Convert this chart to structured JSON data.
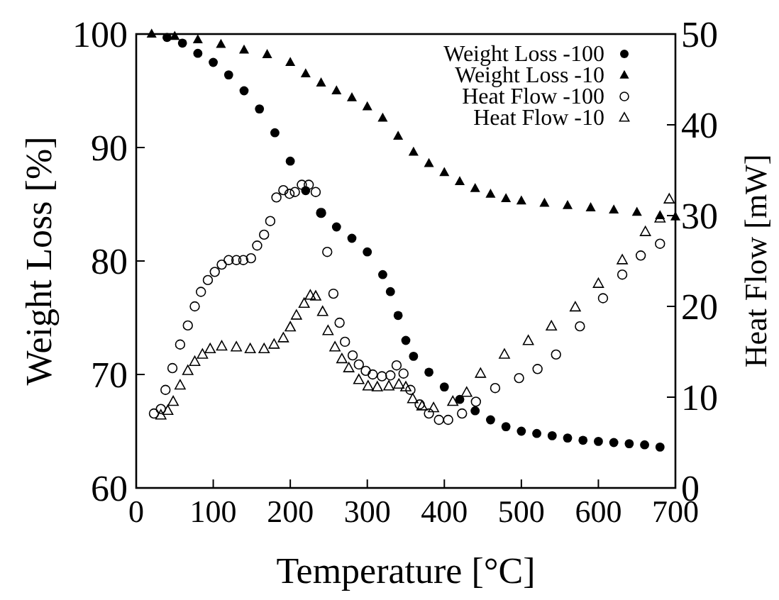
{
  "chart_data": {
    "type": "scatter",
    "xlabel": "Temperature [°C]",
    "ylabel": "Weight Loss [%]",
    "y2label": "Heat Flow [mW]",
    "xlim": [
      0,
      700
    ],
    "xticks": [
      0,
      100,
      200,
      300,
      400,
      500,
      600,
      700
    ],
    "ylim": [
      60,
      100
    ],
    "yticks": [
      60,
      70,
      80,
      90,
      100
    ],
    "y2lim": [
      0,
      50
    ],
    "y2ticks": [
      0,
      10,
      20,
      30,
      40,
      50
    ],
    "legend": "top right",
    "grid": false,
    "series": [
      {
        "name": "Weight Loss -100",
        "color": "#000000",
        "marker": "circle",
        "x": [
          40,
          60,
          80,
          100,
          120,
          140,
          160,
          180,
          200,
          220,
          240,
          260,
          280,
          300,
          320,
          330,
          340,
          350,
          360,
          380,
          400,
          420,
          440,
          460,
          480,
          500,
          520,
          540,
          560,
          580,
          600,
          620,
          640,
          660,
          680
        ],
        "values": [
          99.7,
          99.2,
          98.3,
          97.5,
          96.4,
          95,
          93.4,
          91.3,
          88.8,
          86.2,
          84.2,
          83,
          82,
          80.8,
          78.8,
          77.3,
          75.2,
          73,
          71.6,
          70.2,
          68.9,
          67.8,
          66.8,
          66,
          65.4,
          65,
          64.8,
          64.6,
          64.4,
          64.2,
          64.1,
          64,
          63.9,
          63.8,
          63.6
        ]
      },
      {
        "name": "Weight Loss -10",
        "color": "#000000",
        "marker": "triangle",
        "x": [
          20,
          50,
          80,
          110,
          140,
          170,
          200,
          220,
          240,
          260,
          280,
          300,
          320,
          340,
          360,
          380,
          400,
          420,
          440,
          460,
          480,
          500,
          530,
          560,
          590,
          620,
          650,
          680,
          700
        ],
        "values": [
          100,
          99.8,
          99.5,
          99.1,
          98.6,
          98.2,
          97.5,
          96.5,
          95.7,
          95,
          94.4,
          93.6,
          92.6,
          91,
          89.6,
          88.6,
          87.8,
          87,
          86.4,
          85.9,
          85.5,
          85.3,
          85.1,
          84.9,
          84.7,
          84.5,
          84.3,
          84,
          83.9
        ]
      },
      {
        "name": "Heat Flow -100",
        "color": "#000000",
        "marker": "circle",
        "axis": "y2",
        "x": [
          23,
          32,
          38,
          47,
          57,
          67,
          76,
          84,
          93,
          102,
          111,
          120,
          130,
          139,
          149,
          157,
          166,
          174,
          182,
          191,
          199,
          206,
          215,
          224,
          233,
          240,
          248,
          256,
          264,
          271,
          281,
          289,
          298,
          307,
          319,
          330,
          338,
          347,
          356,
          368,
          380,
          393,
          405,
          423,
          441,
          466,
          497,
          521,
          545,
          576,
          606,
          631,
          655,
          680
        ],
        "values": [
          8.2,
          8.7,
          10.8,
          13.2,
          15.8,
          17.9,
          20,
          21.6,
          22.9,
          23.8,
          24.6,
          25.1,
          25.1,
          25.1,
          25.3,
          26.7,
          27.9,
          29.4,
          32,
          32.8,
          32.4,
          32.6,
          33.4,
          33.4,
          32.6,
          30.3,
          26,
          21.4,
          18.2,
          16.1,
          14.6,
          13.6,
          12.9,
          12.5,
          12.3,
          12.4,
          13.5,
          12.6,
          10.8,
          9.2,
          8.2,
          7.5,
          7.5,
          8.2,
          9.5,
          11,
          12.1,
          13.1,
          14.7,
          17.8,
          20.9,
          23.5,
          25.6,
          26.9
        ]
      },
      {
        "name": "Heat Flow -10",
        "color": "#000000",
        "marker": "triangle",
        "axis": "y2",
        "x": [
          32,
          41,
          48,
          57,
          67,
          76,
          86,
          96,
          111,
          130,
          148,
          166,
          179,
          191,
          200,
          208,
          218,
          226,
          233,
          242,
          249,
          258,
          267,
          276,
          289,
          301,
          313,
          328,
          341,
          350,
          359,
          371,
          386,
          411,
          429,
          447,
          478,
          509,
          539,
          570,
          600,
          631,
          661,
          680,
          692
        ],
        "values": [
          8,
          8.5,
          9.5,
          11.3,
          12.9,
          13.9,
          14.7,
          15.3,
          15.6,
          15.5,
          15.3,
          15.3,
          15.8,
          16.5,
          17.7,
          19,
          20.3,
          21.2,
          21.1,
          19.4,
          17.3,
          15.5,
          14.2,
          13.2,
          11.9,
          11.2,
          11.1,
          11.2,
          11.4,
          11.1,
          9.8,
          9,
          8.8,
          9.5,
          10.5,
          12.6,
          14.7,
          16.2,
          17.8,
          19.9,
          22.5,
          25.1,
          28.2,
          29.7,
          31.8
        ]
      }
    ]
  }
}
